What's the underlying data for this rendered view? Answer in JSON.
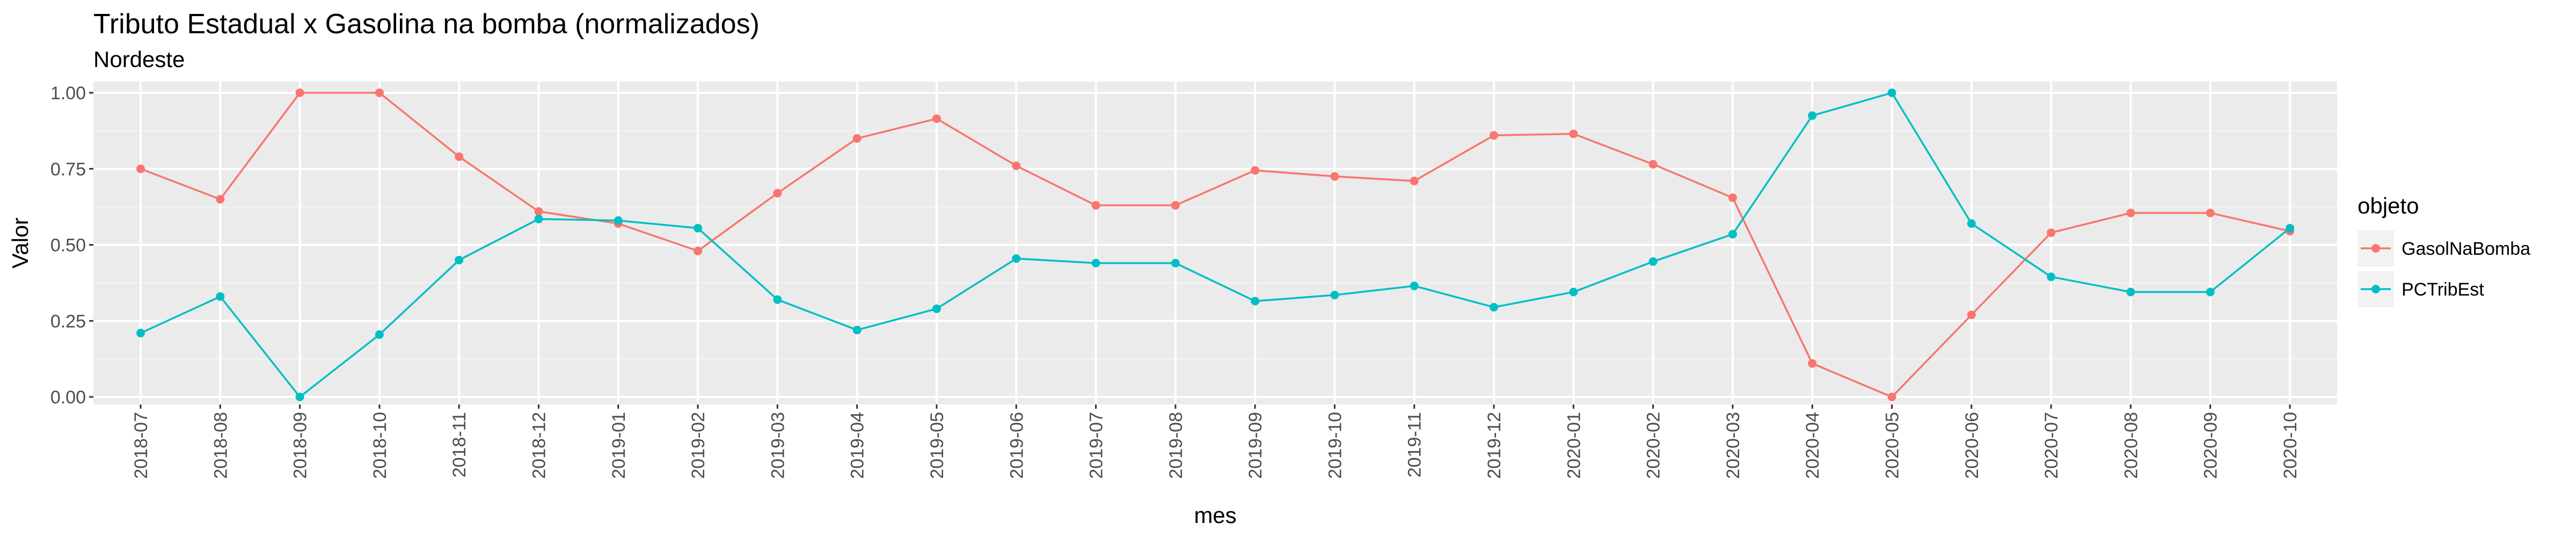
{
  "chart_data": {
    "type": "line",
    "title": "Tributo Estadual x Gasolina na bomba (normalizados)",
    "subtitle": "Nordeste",
    "xlabel": "mes",
    "ylabel": "Valor",
    "ylim": [
      0,
      1
    ],
    "yticks": [
      "0.00",
      "0.25",
      "0.50",
      "0.75",
      "1.00"
    ],
    "grid": true,
    "legend": {
      "title": "objeto",
      "position": "right"
    },
    "categories": [
      "2018-07",
      "2018-08",
      "2018-09",
      "2018-10",
      "2018-11",
      "2018-12",
      "2019-01",
      "2019-02",
      "2019-03",
      "2019-04",
      "2019-05",
      "2019-06",
      "2019-07",
      "2019-08",
      "2019-09",
      "2019-10",
      "2019-11",
      "2019-12",
      "2020-01",
      "2020-02",
      "2020-03",
      "2020-04",
      "2020-05",
      "2020-06",
      "2020-07",
      "2020-08",
      "2020-09",
      "2020-10"
    ],
    "series": [
      {
        "name": "GasolNaBomba",
        "color": "#F8766D",
        "values": [
          0.75,
          0.65,
          1.0,
          1.0,
          0.79,
          0.61,
          0.57,
          0.48,
          0.67,
          0.85,
          0.915,
          0.76,
          0.63,
          0.63,
          0.745,
          0.725,
          0.71,
          0.86,
          0.865,
          0.765,
          0.655,
          0.11,
          0.0,
          0.27,
          0.54,
          0.605,
          0.605,
          0.545
        ]
      },
      {
        "name": "PCTribEst",
        "color": "#00BFC4",
        "values": [
          0.21,
          0.33,
          0.0,
          0.205,
          0.45,
          0.585,
          0.58,
          0.555,
          0.32,
          0.22,
          0.29,
          0.455,
          0.44,
          0.44,
          0.315,
          0.335,
          0.365,
          0.295,
          0.345,
          0.445,
          0.535,
          0.925,
          1.0,
          0.57,
          0.395,
          0.345,
          0.345,
          0.555
        ]
      }
    ]
  }
}
